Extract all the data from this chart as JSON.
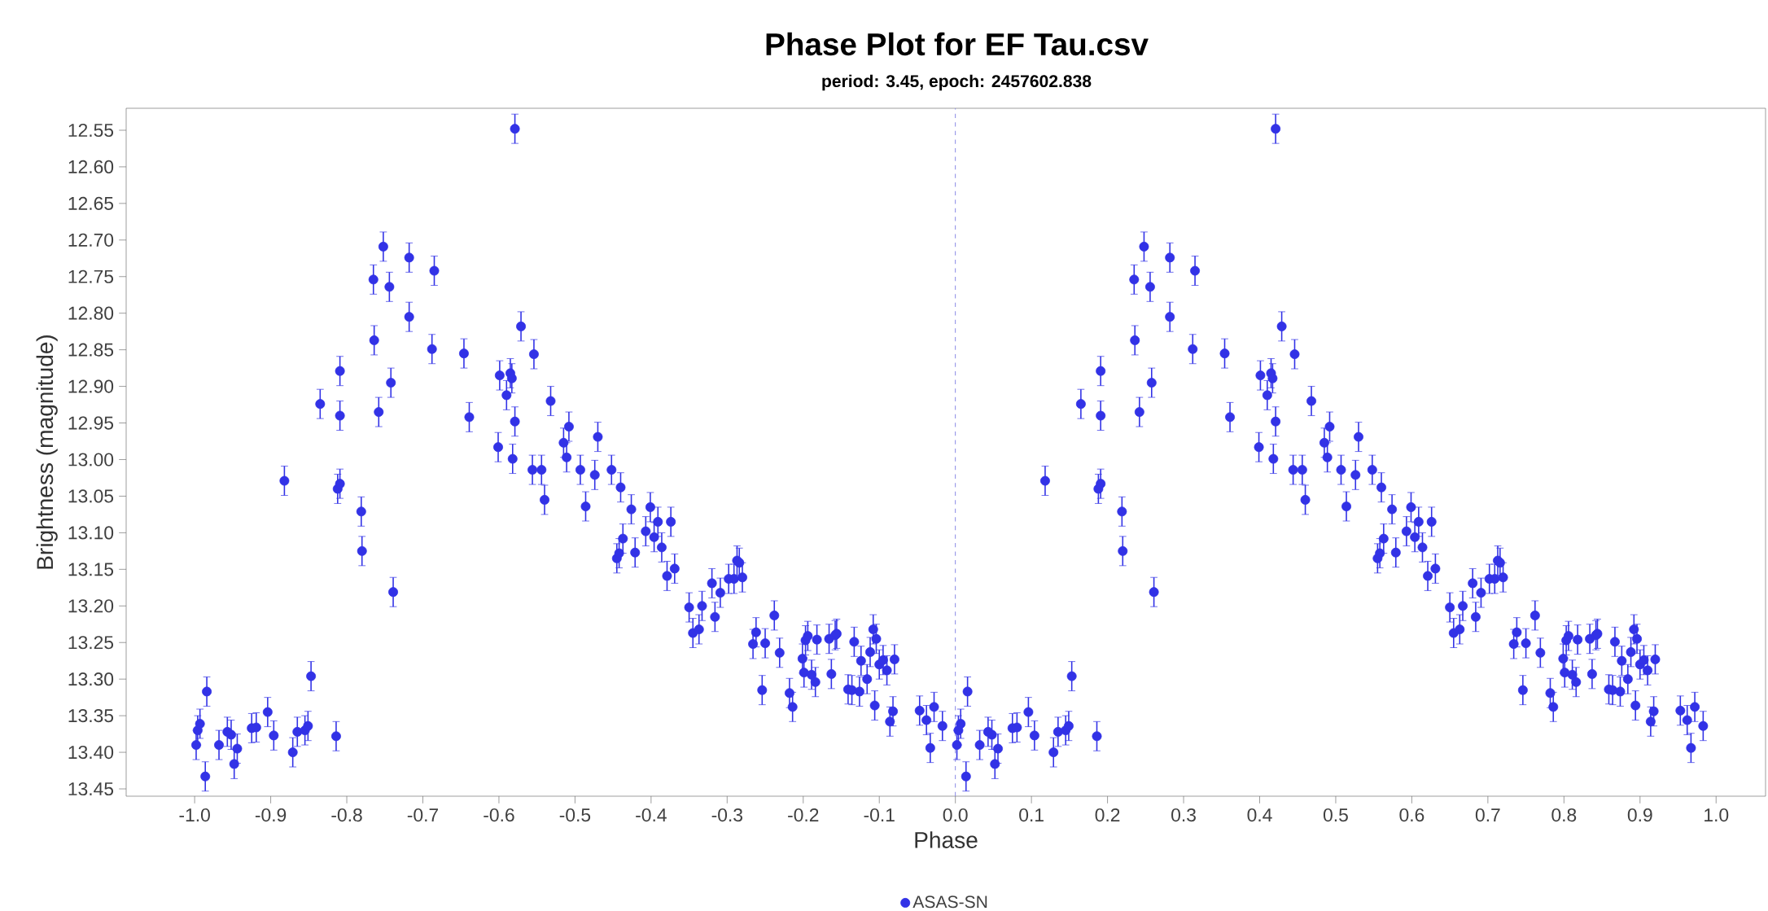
{
  "chart_data": {
    "type": "scatter",
    "title": "Phase Plot for EF Tau.csv",
    "subtitle": "period: 3.45, epoch: 2457602.838",
    "xlabel": "Phase",
    "ylabel": "Brightness (magnitude)",
    "xlim": [
      -1.09,
      1.065
    ],
    "ylim": [
      13.46,
      12.52
    ],
    "xticks": [
      {
        "value": -1.0,
        "label": "-1.0"
      },
      {
        "value": -0.9,
        "label": "-0.9"
      },
      {
        "value": -0.8,
        "label": "-0.8"
      },
      {
        "value": -0.7,
        "label": "-0.7"
      },
      {
        "value": -0.6,
        "label": "-0.6"
      },
      {
        "value": -0.5,
        "label": "-0.5"
      },
      {
        "value": -0.4,
        "label": "-0.4"
      },
      {
        "value": -0.3,
        "label": "-0.3"
      },
      {
        "value": -0.2,
        "label": "-0.2"
      },
      {
        "value": -0.1,
        "label": "-0.1"
      },
      {
        "value": 0.0,
        "label": "0.0"
      },
      {
        "value": 0.1,
        "label": "0.1"
      },
      {
        "value": 0.2,
        "label": "0.2"
      },
      {
        "value": 0.3,
        "label": "0.3"
      },
      {
        "value": 0.4,
        "label": "0.4"
      },
      {
        "value": 0.5,
        "label": "0.5"
      },
      {
        "value": 0.6,
        "label": "0.6"
      },
      {
        "value": 0.7,
        "label": "0.7"
      },
      {
        "value": 0.8,
        "label": "0.8"
      },
      {
        "value": 0.9,
        "label": "0.9"
      },
      {
        "value": 1.0,
        "label": "1.0"
      }
    ],
    "yticks": [
      {
        "value": 12.55,
        "label": "12.55"
      },
      {
        "value": 12.6,
        "label": "12.60"
      },
      {
        "value": 12.65,
        "label": "12.65"
      },
      {
        "value": 12.7,
        "label": "12.70"
      },
      {
        "value": 12.75,
        "label": "12.75"
      },
      {
        "value": 12.8,
        "label": "12.80"
      },
      {
        "value": 12.85,
        "label": "12.85"
      },
      {
        "value": 12.9,
        "label": "12.90"
      },
      {
        "value": 12.95,
        "label": "12.95"
      },
      {
        "value": 13.0,
        "label": "13.00"
      },
      {
        "value": 13.05,
        "label": "13.05"
      },
      {
        "value": 13.1,
        "label": "13.10"
      },
      {
        "value": 13.15,
        "label": "13.15"
      },
      {
        "value": 13.2,
        "label": "13.20"
      },
      {
        "value": 13.25,
        "label": "13.25"
      },
      {
        "value": 13.3,
        "label": "13.30"
      },
      {
        "value": 13.35,
        "label": "13.35"
      },
      {
        "value": 13.4,
        "label": "13.40"
      },
      {
        "value": 13.45,
        "label": "13.45"
      }
    ],
    "marker": "circle",
    "legend": "bottom",
    "ref_lines": [
      {
        "axis": "x",
        "value": 0,
        "color": "#8a8ae6",
        "line_style": "dashed"
      }
    ],
    "x": [
      -0.998,
      -0.996,
      -0.993,
      -0.986,
      -0.984,
      -0.968,
      -0.957,
      -0.952,
      -0.948,
      -0.944,
      -0.925,
      -0.919,
      -0.904,
      -0.896,
      -0.882,
      -0.871,
      -0.865,
      -0.855,
      -0.851,
      -0.847,
      -0.835,
      -0.814,
      -0.812,
      -0.809,
      -0.809,
      -0.809,
      -0.781,
      -0.78,
      -0.765,
      -0.764,
      -0.758,
      -0.752,
      -0.744,
      -0.742,
      -0.739,
      -0.718,
      -0.718,
      -0.688,
      -0.685,
      -0.646,
      -0.639,
      -0.601,
      -0.599,
      -0.59,
      -0.585,
      -0.583,
      -0.582,
      -0.579,
      -0.579,
      -0.571,
      -0.556,
      -0.554,
      -0.544,
      -0.54,
      -0.532,
      -0.515,
      -0.511,
      -0.508,
      -0.493,
      -0.486,
      -0.474,
      -0.47,
      -0.452,
      -0.445,
      -0.442,
      -0.44,
      -0.437,
      -0.426,
      -0.421,
      -0.407,
      -0.401,
      -0.396,
      -0.391,
      -0.386,
      -0.379,
      -0.374,
      -0.369,
      -0.35,
      -0.345,
      -0.337,
      -0.333,
      -0.32,
      -0.316,
      -0.309,
      -0.298,
      -0.291,
      -0.287,
      -0.284,
      -0.28,
      -0.266,
      -0.262,
      -0.254,
      -0.25,
      -0.238,
      -0.231,
      -0.218,
      -0.214,
      -0.201,
      -0.199,
      -0.197,
      -0.194,
      -0.189,
      -0.184,
      -0.182,
      -0.166,
      -0.163,
      -0.158,
      -0.156,
      -0.141,
      -0.136,
      -0.133,
      -0.126,
      -0.124,
      -0.116,
      -0.112,
      -0.108,
      -0.104,
      -0.106,
      -0.1,
      -0.095,
      -0.09,
      -0.086,
      -0.082,
      -0.08,
      -0.047,
      -0.038,
      -0.033,
      -0.028,
      -0.017,
      0.002,
      0.004,
      0.007,
      0.014,
      0.016,
      0.032,
      0.043,
      0.048,
      0.052,
      0.056,
      0.075,
      0.081,
      0.096,
      0.104,
      0.118,
      0.129,
      0.135,
      0.145,
      0.149,
      0.153,
      0.165,
      0.186,
      0.188,
      0.191,
      0.191,
      0.191,
      0.219,
      0.22,
      0.235,
      0.236,
      0.242,
      0.248,
      0.256,
      0.258,
      0.261,
      0.282,
      0.282,
      0.312,
      0.315,
      0.354,
      0.361,
      0.399,
      0.401,
      0.41,
      0.415,
      0.417,
      0.418,
      0.421,
      0.421,
      0.429,
      0.444,
      0.446,
      0.456,
      0.46,
      0.468,
      0.485,
      0.489,
      0.492,
      0.507,
      0.514,
      0.526,
      0.53,
      0.548,
      0.555,
      0.558,
      0.56,
      0.563,
      0.574,
      0.579,
      0.593,
      0.599,
      0.604,
      0.609,
      0.614,
      0.621,
      0.626,
      0.631,
      0.65,
      0.655,
      0.663,
      0.667,
      0.68,
      0.684,
      0.691,
      0.702,
      0.709,
      0.713,
      0.716,
      0.72,
      0.734,
      0.738,
      0.746,
      0.75,
      0.762,
      0.769,
      0.782,
      0.786,
      0.799,
      0.801,
      0.803,
      0.806,
      0.811,
      0.816,
      0.818,
      0.834,
      0.837,
      0.842,
      0.844,
      0.859,
      0.864,
      0.867,
      0.874,
      0.876,
      0.884,
      0.888,
      0.892,
      0.896,
      0.894,
      0.9,
      0.905,
      0.91,
      0.914,
      0.918,
      0.92,
      0.953,
      0.962,
      0.967,
      0.972,
      0.983
    ],
    "series": [
      {
        "name": "ASAS-SN",
        "color": "#3232e6",
        "values": [
          13.39,
          13.37,
          13.361,
          13.433,
          13.317,
          13.39,
          13.372,
          13.376,
          13.416,
          13.395,
          13.367,
          13.366,
          13.345,
          13.377,
          13.029,
          13.4,
          13.372,
          13.37,
          13.364,
          13.296,
          12.924,
          13.378,
          13.04,
          13.033,
          12.94,
          12.879,
          13.071,
          13.125,
          12.754,
          12.837,
          12.935,
          12.709,
          12.764,
          12.895,
          13.181,
          12.724,
          12.805,
          12.849,
          12.742,
          12.855,
          12.942,
          12.983,
          12.885,
          12.912,
          12.882,
          12.889,
          12.999,
          12.548,
          12.948,
          12.818,
          13.014,
          12.856,
          13.014,
          13.055,
          12.92,
          12.977,
          12.997,
          12.955,
          13.014,
          13.064,
          13.021,
          12.969,
          13.014,
          13.135,
          13.128,
          13.038,
          13.108,
          13.068,
          13.127,
          13.098,
          13.065,
          13.106,
          13.085,
          13.12,
          13.159,
          13.085,
          13.149,
          13.202,
          13.237,
          13.232,
          13.2,
          13.169,
          13.215,
          13.182,
          13.163,
          13.163,
          13.138,
          13.141,
          13.161,
          13.252,
          13.236,
          13.315,
          13.251,
          13.213,
          13.264,
          13.319,
          13.338,
          13.272,
          13.291,
          13.247,
          13.241,
          13.294,
          13.304,
          13.246,
          13.245,
          13.293,
          13.24,
          13.238,
          13.314,
          13.315,
          13.249,
          13.317,
          13.275,
          13.3,
          13.263,
          13.232,
          13.245,
          13.336,
          13.28,
          13.274,
          13.288,
          13.358,
          13.344,
          13.273,
          13.343,
          13.356,
          13.394,
          13.338,
          13.364,
          13.39,
          13.37,
          13.361,
          13.433,
          13.317,
          13.39,
          13.372,
          13.376,
          13.416,
          13.395,
          13.367,
          13.366,
          13.345,
          13.377,
          13.029,
          13.4,
          13.372,
          13.37,
          13.364,
          13.296,
          12.924,
          13.378,
          13.04,
          13.033,
          12.94,
          12.879,
          13.071,
          13.125,
          12.754,
          12.837,
          12.935,
          12.709,
          12.764,
          12.895,
          13.181,
          12.724,
          12.805,
          12.849,
          12.742,
          12.855,
          12.942,
          12.983,
          12.885,
          12.912,
          12.882,
          12.889,
          12.999,
          12.548,
          12.948,
          12.818,
          13.014,
          12.856,
          13.014,
          13.055,
          12.92,
          12.977,
          12.997,
          12.955,
          13.014,
          13.064,
          13.021,
          12.969,
          13.014,
          13.135,
          13.128,
          13.038,
          13.108,
          13.068,
          13.127,
          13.098,
          13.065,
          13.106,
          13.085,
          13.12,
          13.159,
          13.085,
          13.149,
          13.202,
          13.237,
          13.232,
          13.2,
          13.169,
          13.215,
          13.182,
          13.163,
          13.163,
          13.138,
          13.141,
          13.161,
          13.252,
          13.236,
          13.315,
          13.251,
          13.213,
          13.264,
          13.319,
          13.338,
          13.272,
          13.291,
          13.247,
          13.241,
          13.294,
          13.304,
          13.246,
          13.245,
          13.293,
          13.24,
          13.238,
          13.314,
          13.315,
          13.249,
          13.317,
          13.275,
          13.3,
          13.263,
          13.232,
          13.245,
          13.336,
          13.28,
          13.274,
          13.288,
          13.358,
          13.344,
          13.273,
          13.343,
          13.356,
          13.394,
          13.338,
          13.364
        ],
        "errors": [
          0.02,
          0.02,
          0.02,
          0.02,
          0.02,
          0.02,
          0.02,
          0.02,
          0.02,
          0.02,
          0.02,
          0.02,
          0.02,
          0.02,
          0.02,
          0.02,
          0.02,
          0.02,
          0.02,
          0.02,
          0.02,
          0.02,
          0.02,
          0.02,
          0.02,
          0.02,
          0.02,
          0.02,
          0.02,
          0.02,
          0.02,
          0.02,
          0.02,
          0.02,
          0.02,
          0.02,
          0.02,
          0.02,
          0.02,
          0.02,
          0.02,
          0.02,
          0.02,
          0.02,
          0.02,
          0.02,
          0.02,
          0.02,
          0.02,
          0.02,
          0.02,
          0.02,
          0.02,
          0.02,
          0.02,
          0.02,
          0.02,
          0.02,
          0.02,
          0.02,
          0.02,
          0.02,
          0.02,
          0.02,
          0.02,
          0.02,
          0.02,
          0.02,
          0.02,
          0.02,
          0.02,
          0.02,
          0.02,
          0.02,
          0.02,
          0.02,
          0.02,
          0.02,
          0.02,
          0.02,
          0.02,
          0.02,
          0.02,
          0.02,
          0.02,
          0.02,
          0.02,
          0.02,
          0.02,
          0.02,
          0.02,
          0.02,
          0.02,
          0.02,
          0.02,
          0.02,
          0.02,
          0.02,
          0.02,
          0.02,
          0.02,
          0.02,
          0.02,
          0.02,
          0.02,
          0.02,
          0.02,
          0.02,
          0.02,
          0.02,
          0.02,
          0.02,
          0.02,
          0.02,
          0.02,
          0.02,
          0.02,
          0.02,
          0.02,
          0.02,
          0.02,
          0.02,
          0.02,
          0.02,
          0.02,
          0.02,
          0.02,
          0.02,
          0.02,
          0.02,
          0.02,
          0.02,
          0.02,
          0.02,
          0.02,
          0.02,
          0.02,
          0.02,
          0.02,
          0.02,
          0.02,
          0.02,
          0.02,
          0.02,
          0.02,
          0.02,
          0.02,
          0.02,
          0.02,
          0.02,
          0.02,
          0.02,
          0.02,
          0.02,
          0.02,
          0.02,
          0.02,
          0.02,
          0.02,
          0.02,
          0.02,
          0.02,
          0.02,
          0.02,
          0.02,
          0.02,
          0.02,
          0.02,
          0.02,
          0.02,
          0.02,
          0.02,
          0.02,
          0.02,
          0.02,
          0.02,
          0.02,
          0.02,
          0.02,
          0.02,
          0.02,
          0.02,
          0.02,
          0.02,
          0.02,
          0.02,
          0.02,
          0.02,
          0.02,
          0.02,
          0.02,
          0.02,
          0.02,
          0.02,
          0.02,
          0.02,
          0.02,
          0.02,
          0.02,
          0.02,
          0.02,
          0.02,
          0.02,
          0.02,
          0.02,
          0.02,
          0.02,
          0.02,
          0.02,
          0.02,
          0.02,
          0.02,
          0.02,
          0.02,
          0.02,
          0.02,
          0.02,
          0.02,
          0.02,
          0.02,
          0.02,
          0.02,
          0.02,
          0.02,
          0.02,
          0.02,
          0.02,
          0.02,
          0.02,
          0.02,
          0.02,
          0.02,
          0.02,
          0.02,
          0.02,
          0.02,
          0.02,
          0.02,
          0.02,
          0.02,
          0.02,
          0.02,
          0.02,
          0.02,
          0.02,
          0.02,
          0.02,
          0.02,
          0.02,
          0.02,
          0.02,
          0.02,
          0.02,
          0.02,
          0.02,
          0.02,
          0.02,
          0.02
        ]
      }
    ]
  }
}
